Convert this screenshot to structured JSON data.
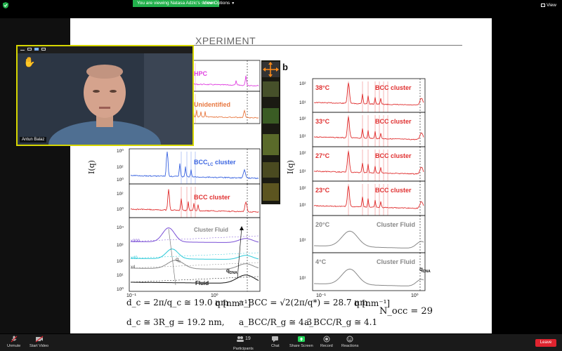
{
  "topbar": {
    "banner": "You are viewing Natasa Adzic's screen",
    "view_options": "View Options",
    "view": "View"
  },
  "slide": {
    "title": "XPERIMENT",
    "panel_a": {
      "ylabel": "I(q)",
      "xlabel": "q [nm⁻¹]",
      "rows": [
        {
          "label": "HPC",
          "color": "#e040e0"
        },
        {
          "label": "Unidentified",
          "color": "#e87840"
        },
        {
          "label": "BCC",
          "sub": "LC",
          "label_tail": " cluster",
          "color": "#3a64e0"
        },
        {
          "label": "BCC cluster",
          "color": "#e03030"
        }
      ],
      "fluid_labels": {
        "cluster_fluid": "Cluster Fluid",
        "fluid": "Fluid",
        "qdna": "q",
        "qdna_sub": "DNA",
        "qc": "q",
        "qc_sub": "c",
        "x300": "x300",
        "x40": "x40",
        "x4": "x4"
      },
      "yticks": [
        "10⁰",
        "10²",
        "10⁰",
        "10²",
        "10⁰",
        "10¹",
        "10²",
        "10³",
        "10⁴",
        "10⁰"
      ],
      "xticks": [
        "10⁻¹",
        "10⁰"
      ]
    },
    "panel_b": {
      "letter": "b",
      "ylabel": "I(q)",
      "xlabel": "q [nm⁻¹]",
      "rows": [
        {
          "temp": "38°C",
          "label": "BCC cluster",
          "color": "#e03030"
        },
        {
          "temp": "33°C",
          "label": "BCC cluster",
          "color": "#e03030"
        },
        {
          "temp": "27°C",
          "label": "BCC cluster",
          "color": "#e03030"
        },
        {
          "temp": "23°C",
          "label": "BCC cluster",
          "color": "#e03030"
        },
        {
          "temp": "20°C",
          "label": "Cluster Fluid",
          "color": "#888888"
        },
        {
          "temp": "4°C",
          "label": "Cluster Fluid",
          "color": "#888888"
        }
      ],
      "qdna": "q",
      "qdna_sub": "DNA",
      "yticks": [
        "10²",
        "10¹",
        "10²",
        "10¹",
        "10²",
        "10¹",
        "10²",
        "10¹",
        "10¹",
        "10¹"
      ],
      "xticks": [
        "10⁻¹",
        "10⁰"
      ]
    },
    "formulas": {
      "f1": "d_c = 2π/q_c ≅ 19.0 nm",
      "f2": "a_BCC = √2(2π/q*) = 28.7 nm",
      "f3": "N_occ = 29",
      "f4": "d_c ≅ 3R_g = 19.2 nm,",
      "f5": "a_BCC/R_g ≅ 4.3",
      "f6": "a_BCC/R_g ≅ 4.1"
    }
  },
  "video": {
    "name": "Antun Balaz"
  },
  "toolbar": {
    "unmute": "Unmute",
    "start_video": "Start Video",
    "participants": "Participants",
    "participants_count": "19",
    "chat": "Chat",
    "share_screen": "Share Screen",
    "record": "Record",
    "reactions": "Reactions",
    "leave": "Leave"
  }
}
